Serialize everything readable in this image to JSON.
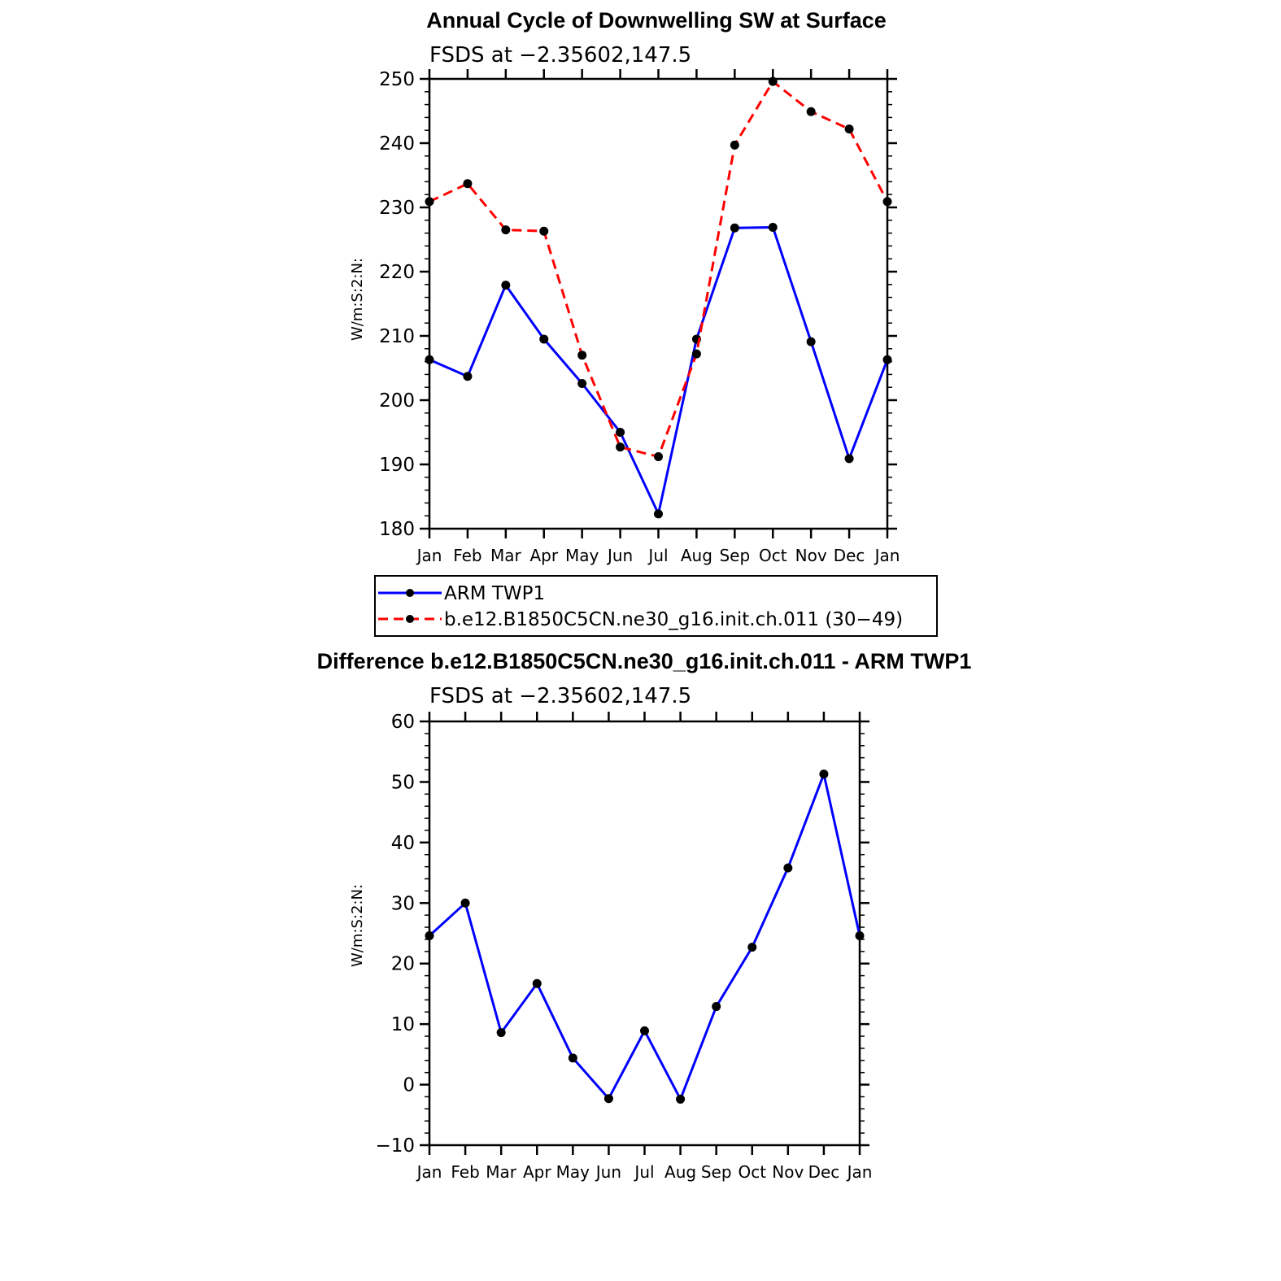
{
  "chart_data": [
    {
      "type": "line",
      "title": "Annual Cycle of Downwelling SW at Surface",
      "subtitle": "FSDS at −2.35602,147.5",
      "ylabel": "W/m:S:2:N:",
      "xlabel": "",
      "categories": [
        "Jan",
        "Feb",
        "Mar",
        "Apr",
        "May",
        "Jun",
        "Jul",
        "Aug",
        "Sep",
        "Oct",
        "Nov",
        "Dec",
        "Jan"
      ],
      "ylim": [
        180,
        250
      ],
      "yticks": [
        "180",
        "190",
        "200",
        "210",
        "220",
        "230",
        "240",
        "250"
      ],
      "series": [
        {
          "name": "ARM TWP1",
          "color": "#0000ff",
          "dash": "solid",
          "values": [
            206.3,
            203.7,
            217.9,
            209.5,
            202.6,
            195.0,
            182.3,
            209.5,
            226.8,
            226.9,
            209.1,
            190.9,
            206.3
          ]
        },
        {
          "name": "b.e12.B1850C5CN.ne30_g16.init.ch.011 (30−49)",
          "color": "#ff0000",
          "dash": "dashed",
          "values": [
            230.9,
            233.7,
            226.5,
            226.3,
            207.0,
            192.7,
            191.2,
            207.2,
            239.7,
            249.6,
            244.9,
            242.2,
            230.9
          ]
        }
      ],
      "legend": "below"
    },
    {
      "type": "line",
      "title": "Difference b.e12.B1850C5CN.ne30_g16.init.ch.011 - ARM TWP1",
      "subtitle": "FSDS at −2.35602,147.5",
      "ylabel": "W/m:S:2:N:",
      "xlabel": "",
      "categories": [
        "Jan",
        "Feb",
        "Mar",
        "Apr",
        "May",
        "Jun",
        "Jul",
        "Aug",
        "Sep",
        "Oct",
        "Nov",
        "Dec",
        "Jan"
      ],
      "ylim": [
        -10,
        60
      ],
      "yticks": [
        "−10",
        "0",
        "10",
        "20",
        "30",
        "40",
        "50",
        "60"
      ],
      "series": [
        {
          "name": "Difference",
          "color": "#0000ff",
          "dash": "solid",
          "values": [
            24.6,
            30.0,
            8.6,
            16.7,
            4.4,
            -2.3,
            8.9,
            -2.4,
            12.9,
            22.7,
            35.8,
            51.3,
            24.6
          ]
        }
      ]
    }
  ]
}
